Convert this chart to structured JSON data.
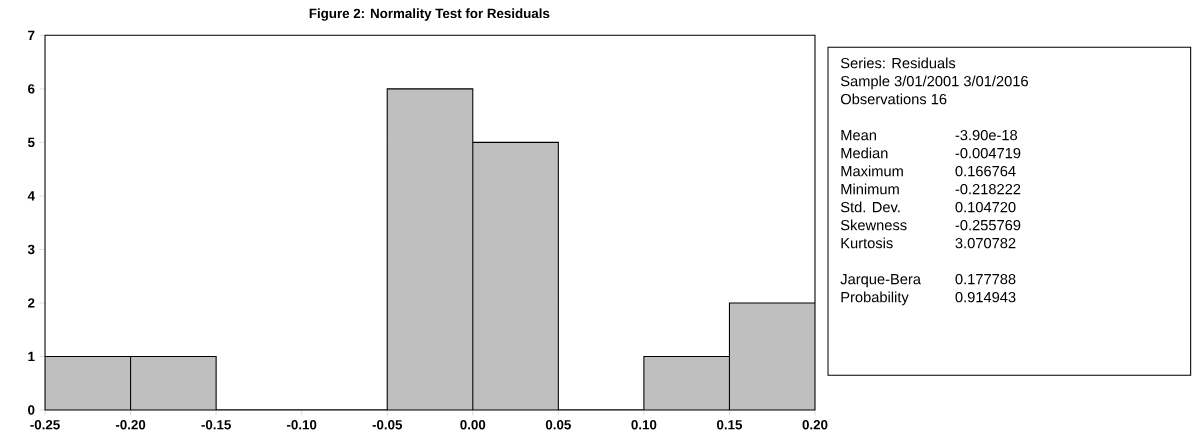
{
  "chart_data": [
    {
      "type": "histogram",
      "title": "Figure 2: Normality Test for Residuals",
      "bins": [
        -0.25,
        -0.2,
        -0.15,
        -0.1,
        -0.05,
        0,
        0.05,
        0.1,
        0.15,
        0.2
      ],
      "values": [
        1,
        1,
        0,
        0,
        6,
        5,
        0,
        1,
        2
      ],
      "color": "#bfbfbf",
      "xlim": [
        -0.25,
        0.2
      ],
      "ylim": [
        0,
        7
      ],
      "xticks": [
        {
          "value": -0.25,
          "label": "-0.25"
        },
        {
          "value": -0.2,
          "label": "-0.20"
        },
        {
          "value": -0.15,
          "label": "-0.15"
        },
        {
          "value": -0.1,
          "label": "-0.10"
        },
        {
          "value": -0.05,
          "label": "-0.05"
        },
        {
          "value": 0,
          "label": "0.00"
        },
        {
          "value": 0.05,
          "label": "0.05"
        },
        {
          "value": 0.1,
          "label": "0.10"
        },
        {
          "value": 0.15,
          "label": "0.15"
        },
        {
          "value": 0.2,
          "label": "0.20"
        }
      ],
      "yticks": [
        0,
        1,
        2,
        3,
        4,
        5,
        6,
        7
      ]
    },
    {
      "type": "other",
      "annotations": [
        "Series: Residuals",
        "Sample 3/01/2001 3/01/2016",
        "Observations 16",
        "Mean",
        "-3.90e-18",
        "Median",
        "-0.004719",
        "Maximum",
        "0.166764",
        "Minimum",
        "-0.218222",
        "Std. Dev.",
        "0.104720",
        "Skewness",
        "-0.255769",
        "Kurtosis",
        "3.070782",
        "Jarque-Bera",
        "0.177788",
        "Probability",
        "0.914943"
      ]
    }
  ]
}
